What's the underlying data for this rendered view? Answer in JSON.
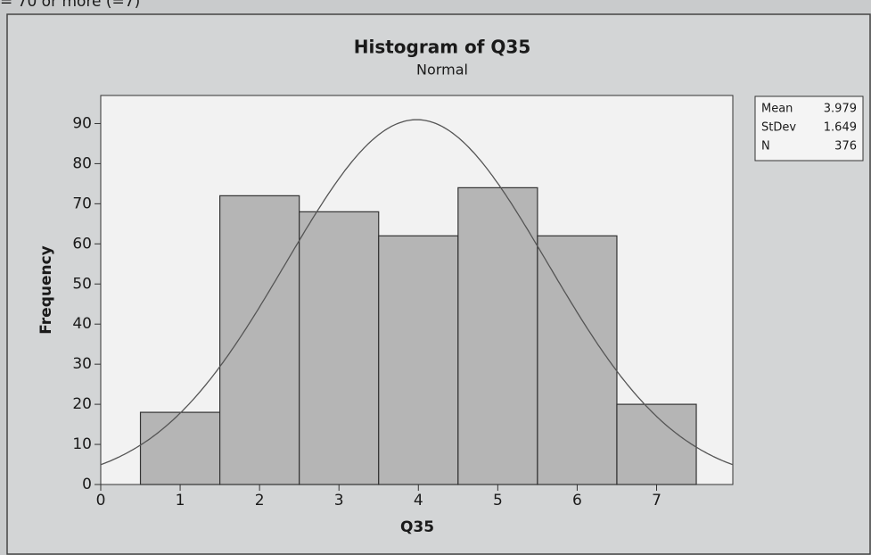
{
  "page_text": "= 70 or more (=7)",
  "chart_data": {
    "type": "histogram",
    "title": "Histogram of Q35",
    "subtitle": "Normal",
    "x_label": "Q35",
    "y_label": "Frequency",
    "bins": [
      0.5,
      1.5,
      2.5,
      3.5,
      4.5,
      5.5,
      6.5,
      7.5
    ],
    "values": [
      18,
      72,
      68,
      62,
      74,
      62,
      20
    ],
    "color": "#b5b5b5",
    "curve_color": "#555555",
    "xlim": [
      0,
      7.96
    ],
    "ylim": [
      0,
      97
    ],
    "xticks": [
      0,
      1,
      2,
      3,
      4,
      5,
      6,
      7
    ],
    "yticks": [
      0,
      10,
      20,
      30,
      40,
      50,
      60,
      70,
      80,
      90
    ],
    "fit": "normal",
    "stats": [
      {
        "label": "Mean",
        "value": 3.979
      },
      {
        "label": "StDev",
        "value": 1.649
      },
      {
        "label": "N",
        "value": 376
      }
    ]
  }
}
